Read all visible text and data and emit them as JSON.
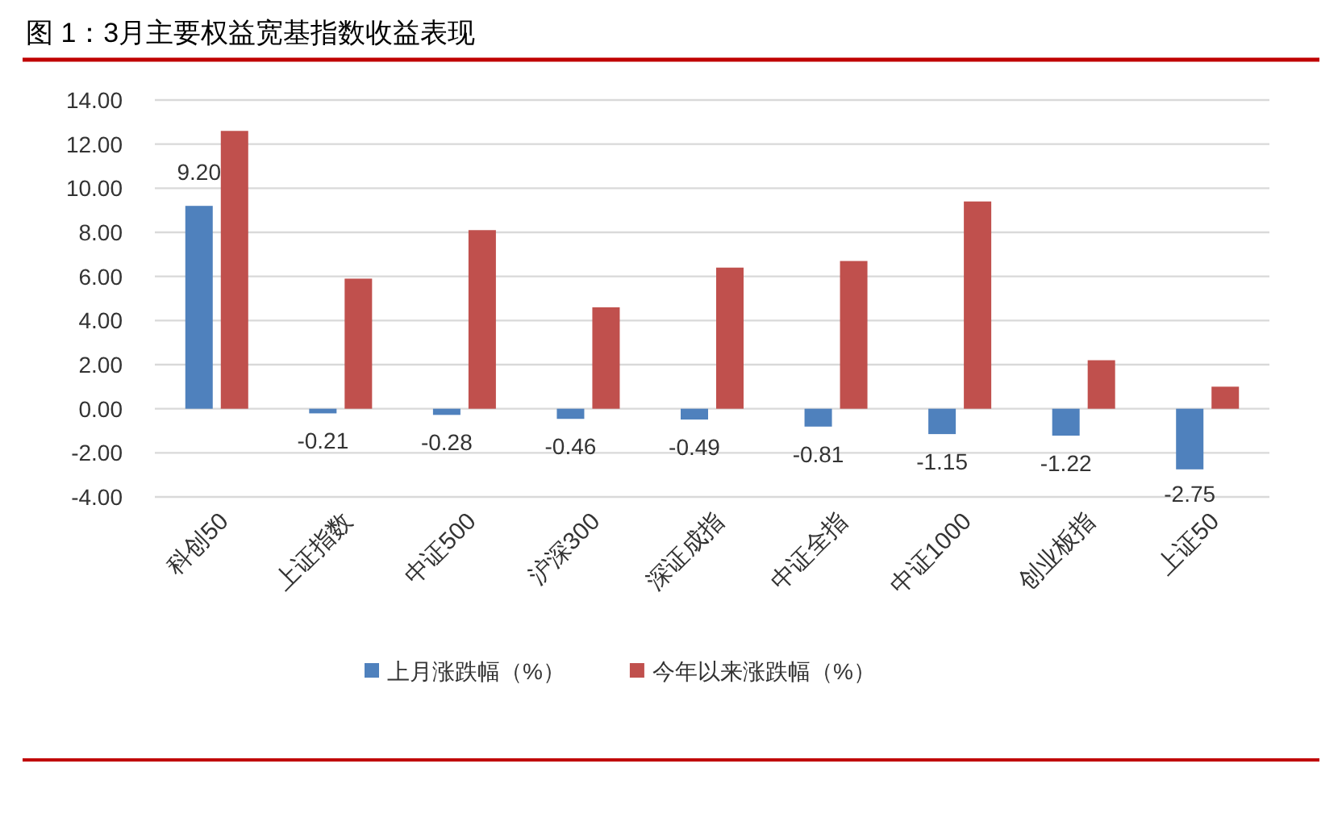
{
  "chart_data": {
    "type": "bar",
    "title": "图 1：3月主要权益宽基指数收益表现",
    "categories": [
      "科创50",
      "上证指数",
      "中证500",
      "沪深300",
      "深证成指",
      "中证全指",
      "中证1000",
      "创业板指",
      "上证50"
    ],
    "series": [
      {
        "name": "上月涨跌幅（%）",
        "color": "#4f81bd",
        "values": [
          9.2,
          -0.21,
          -0.28,
          -0.46,
          -0.49,
          -0.81,
          -1.15,
          -1.22,
          -2.75
        ],
        "value_labels": [
          "9.20",
          "-0.21",
          "-0.28",
          "-0.46",
          "-0.49",
          "-0.81",
          "-1.15",
          "-1.22",
          "-2.75"
        ]
      },
      {
        "name": "今年以来涨跌幅（%）",
        "color": "#c0504d",
        "values": [
          12.6,
          5.9,
          8.1,
          4.6,
          6.4,
          6.7,
          9.4,
          2.2,
          1.0
        ]
      }
    ],
    "ylim": [
      -4,
      14
    ],
    "yticks": [
      {
        "value": -4,
        "label": "-4.00"
      },
      {
        "value": -2,
        "label": "-2.00"
      },
      {
        "value": 0,
        "label": "0.00"
      },
      {
        "value": 2,
        "label": "2.00"
      },
      {
        "value": 4,
        "label": "4.00"
      },
      {
        "value": 6,
        "label": "6.00"
      },
      {
        "value": 8,
        "label": "8.00"
      },
      {
        "value": 10,
        "label": "10.00"
      },
      {
        "value": 12,
        "label": "12.00"
      },
      {
        "value": 14,
        "label": "14.00"
      }
    ],
    "grid": "y",
    "legend": "bottom"
  }
}
